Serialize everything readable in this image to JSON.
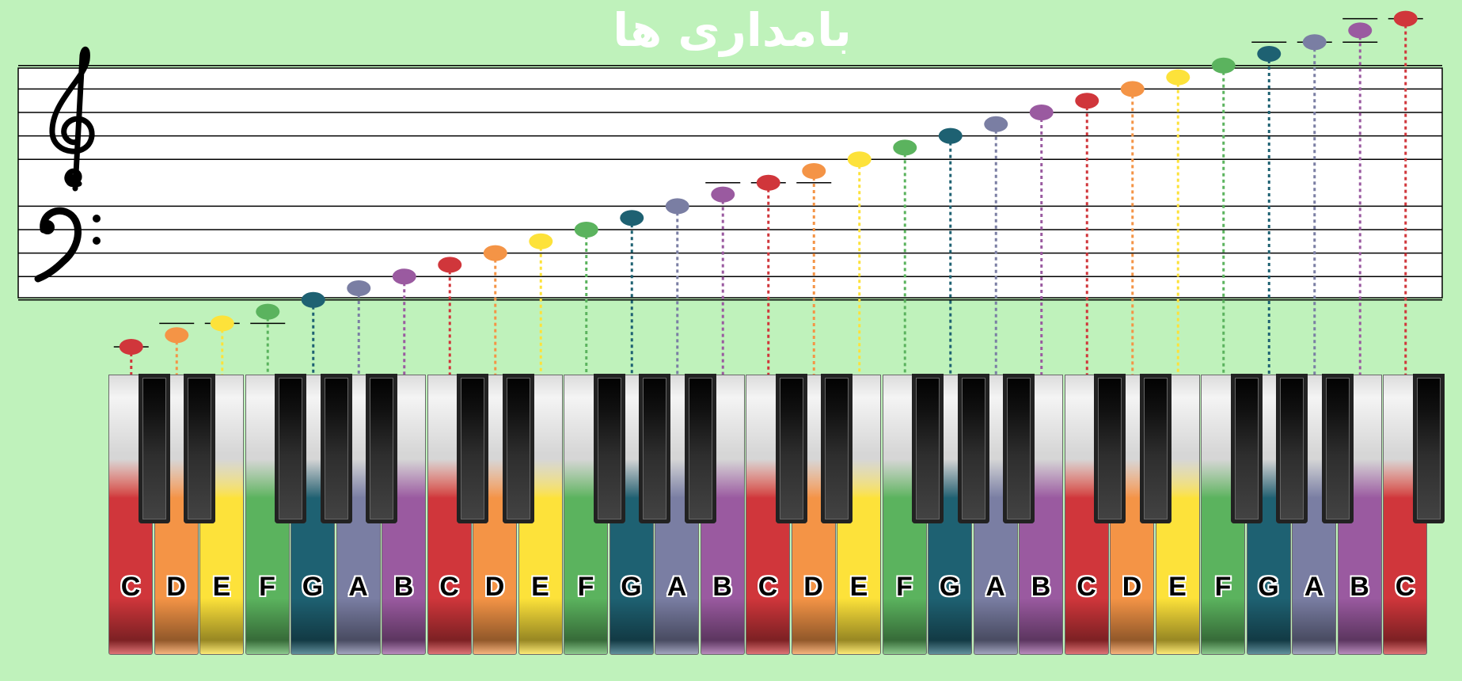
{
  "logo": {
    "text": "بامداری ها"
  },
  "colors": {
    "C": "#d0363b",
    "D": "#f49446",
    "E": "#fde23a",
    "F": "#5bb35e",
    "G": "#1e6172",
    "A": "#7a7ea3",
    "B": "#9a5aa0"
  },
  "clefs": [
    "treble-clef",
    "bass-clef"
  ],
  "keys": [
    "C",
    "D",
    "E",
    "F",
    "G",
    "A",
    "B",
    "C",
    "D",
    "E",
    "F",
    "G",
    "A",
    "B",
    "C",
    "D",
    "E",
    "F",
    "G",
    "A",
    "B",
    "C",
    "D",
    "E",
    "F",
    "G",
    "A",
    "B",
    "C"
  ],
  "notes": [
    "C2",
    "D2",
    "E2",
    "F2",
    "G2",
    "A2",
    "B2",
    "C3",
    "D3",
    "E3",
    "F3",
    "G3",
    "A3",
    "B3",
    "C4",
    "D4",
    "E4",
    "F4",
    "G4",
    "A4",
    "B4",
    "C5",
    "D5",
    "E5",
    "F5",
    "G5",
    "A5",
    "B5",
    "C6"
  ]
}
